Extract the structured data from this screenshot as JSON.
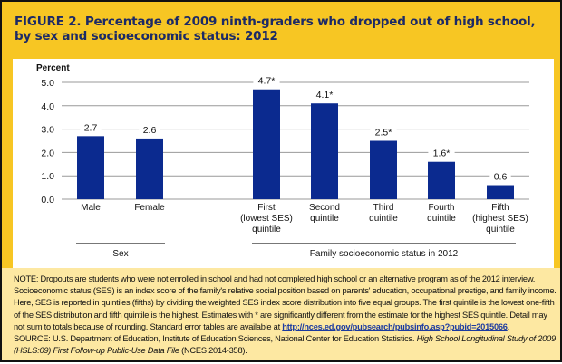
{
  "title": "FIGURE 2. Percentage of 2009 ninth-graders who dropped out of high school, by sex and socioeconomic status: 2012",
  "colors": {
    "bar": "#0b2a8f",
    "frame": "#f7c623",
    "notes_bg": "#fde8a2",
    "title": "#1c2a66"
  },
  "chart_data": {
    "type": "bar",
    "title": "FIGURE 2. Percentage of 2009 ninth-graders who dropped out of high school, by sex and socioeconomic status: 2012",
    "ylabel": "Percent",
    "xlabel": "",
    "ylim": [
      0,
      5
    ],
    "yticks": [
      "0.0",
      "1.0",
      "2.0",
      "3.0",
      "4.0",
      "5.0"
    ],
    "grid": true,
    "categories": [
      [
        "Male"
      ],
      [
        "Female"
      ],
      [
        "First",
        "(lowest SES)",
        "quintile"
      ],
      [
        "Second",
        "quintile"
      ],
      [
        "Third",
        "quintile"
      ],
      [
        "Fourth",
        "quintile"
      ],
      [
        "Fifth",
        "(highest SES)",
        "quintile"
      ]
    ],
    "values": [
      2.7,
      2.6,
      4.7,
      4.1,
      2.5,
      1.6,
      0.6
    ],
    "data_labels": [
      "2.7",
      "2.6",
      "4.7*",
      "4.1*",
      "2.5*",
      "1.6*",
      "0.6"
    ],
    "groups": [
      {
        "label": "Sex",
        "members": [
          0,
          1
        ]
      },
      {
        "label": "Family socioeconomic status in 2012",
        "members": [
          2,
          3,
          4,
          5,
          6
        ]
      }
    ]
  },
  "notes": {
    "note_text": "NOTE: Dropouts are students who were not enrolled in school and had not completed high school or an alternative program as of the 2012 interview. Socioeconomic status (SES) is an index score of the family's relative social position based on parents' education, occupational prestige, and family income. Here, SES is reported in quintiles (fifths) by dividing the weighted SES index score distribution into five equal groups. The first quintile is the lowest one-fifth of the SES distribution and fifth quintile is the highest. Estimates with * are significantly different from the estimate for the highest SES quintile. Detail may not sum to totals because of rounding. Standard error tables are available at ",
    "link": "http://nces.ed.gov/pubsearch/pubsinfo.asp?pubid=2015066",
    "after_link": ".",
    "source_prefix": "SOURCE: U.S. Department of Education, Institute of Education Sciences, National Center for Education Statistics. ",
    "source_title": "High School Longitudinal Study of 2009 (HSLS:09) First Follow-up Public-Use Data File",
    "source_suffix": " (NCES 2014-358)."
  }
}
